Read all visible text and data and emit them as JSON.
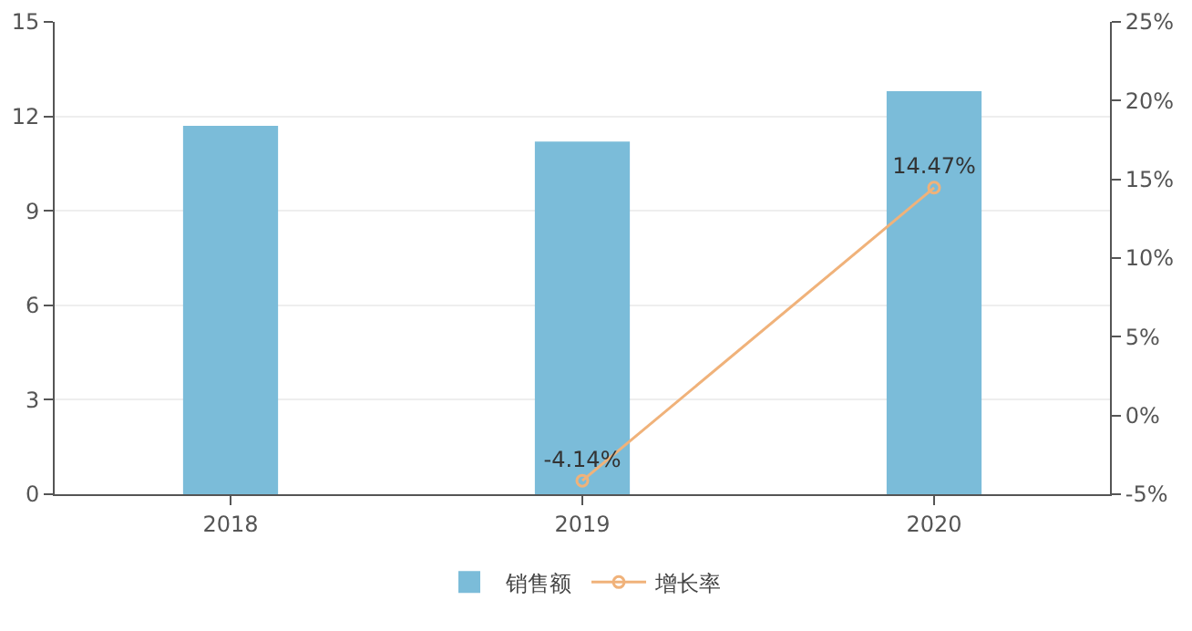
{
  "chart_data": {
    "type": "bar",
    "categories": [
      "2018",
      "2019",
      "2020"
    ],
    "series": [
      {
        "name": "销售额",
        "color": "#7bbcd9",
        "values": [
          11.7,
          11.2,
          12.8
        ]
      },
      {
        "name": "增长率",
        "type": "line",
        "axis": "y2",
        "color": "#f0b27a",
        "marker": "circle",
        "values": [
          null,
          -4.14,
          14.47
        ],
        "value_labels": [
          null,
          "-4.14%",
          "14.47%"
        ]
      }
    ],
    "ylim": [
      0,
      15
    ],
    "yticks": [
      0,
      3,
      6,
      9,
      12,
      15
    ],
    "y2lim": [
      -5,
      25
    ],
    "y2ticks": [
      {
        "value": -5,
        "label": "-5%"
      },
      {
        "value": 0,
        "label": "0%"
      },
      {
        "value": 5,
        "label": "5%"
      },
      {
        "value": 10,
        "label": "10%"
      },
      {
        "value": 15,
        "label": "15%"
      },
      {
        "value": 20,
        "label": "20%"
      },
      {
        "value": 25,
        "label": "25%"
      }
    ],
    "grid": "y",
    "legend": "bottom"
  }
}
